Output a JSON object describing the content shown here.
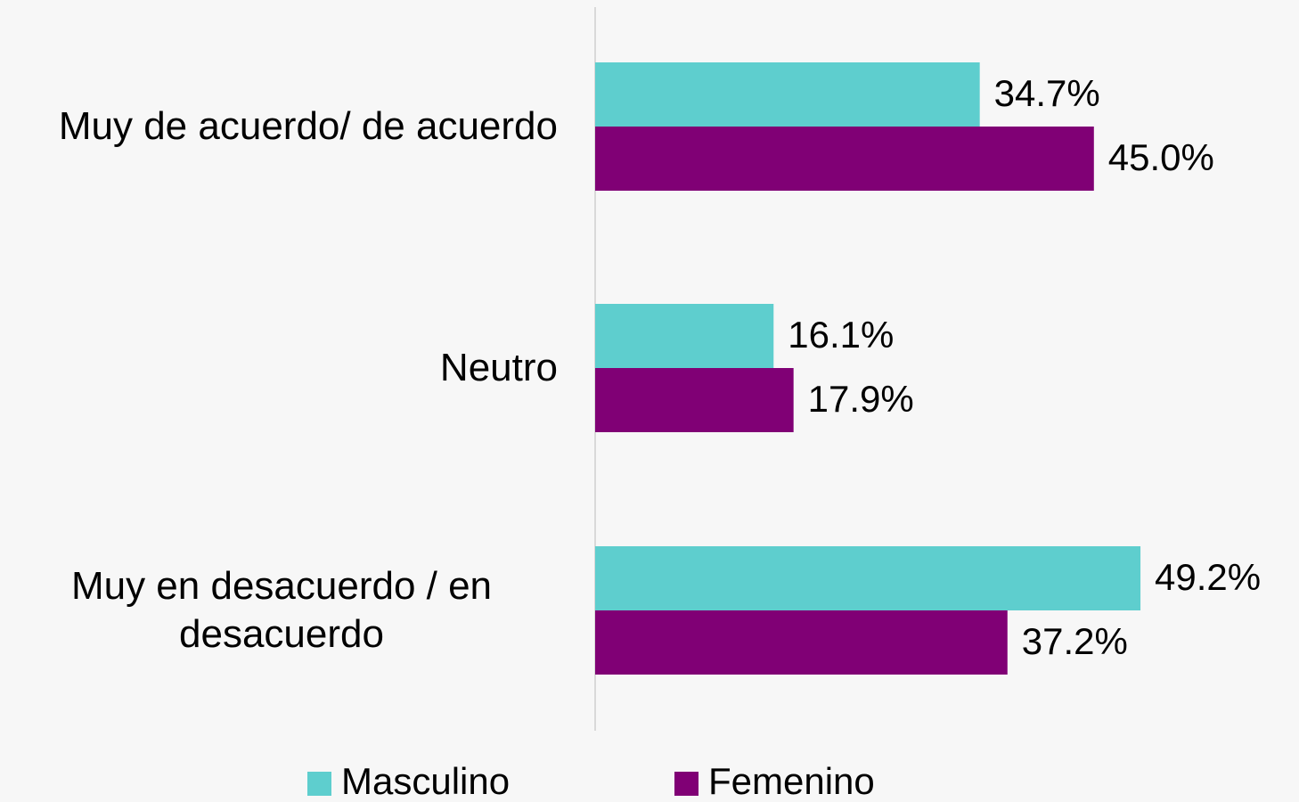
{
  "chart_data": {
    "type": "barh",
    "categories": [
      "Muy de acuerdo/ de acuerdo",
      "Neutro",
      "Muy en desacuerdo / en desacuerdo"
    ],
    "series": [
      {
        "name": "Masculino",
        "color": "#5ecece",
        "values": [
          34.7,
          16.1,
          49.2
        ],
        "value_labels": [
          "34.7%",
          "16.1%",
          "49.2%"
        ]
      },
      {
        "name": "Femenino",
        "color": "#800075",
        "values": [
          45.0,
          17.9,
          37.2
        ],
        "value_labels": [
          "45.0%",
          "17.9%",
          "37.2%"
        ]
      }
    ],
    "xlim": [
      0,
      50
    ],
    "legend": "bottom"
  }
}
